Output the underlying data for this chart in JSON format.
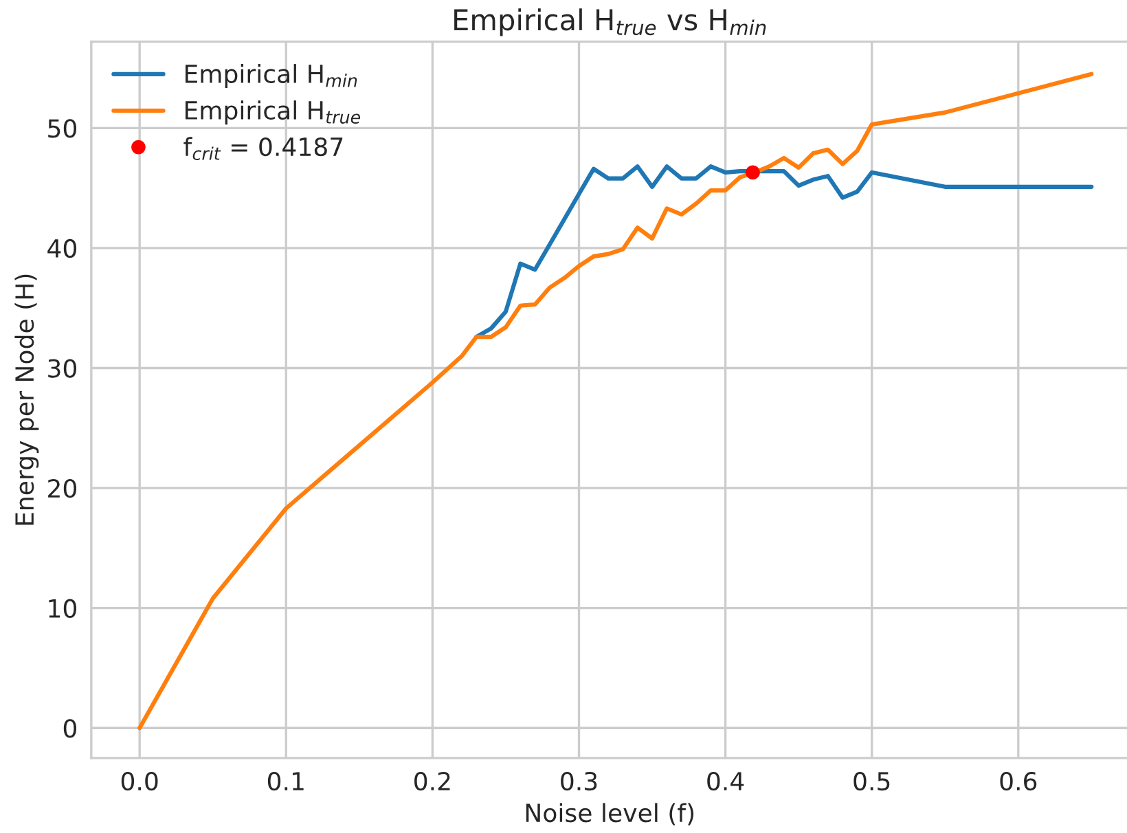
{
  "chart_data": {
    "type": "line",
    "title": "Empirical H$_{true}$ vs H$_{min}$",
    "xlabel": "Noise level (f)",
    "ylabel": "Energy per Node (H)",
    "x": [
      0,
      0.05,
      0.1,
      0.2,
      0.22,
      0.23,
      0.24,
      0.25,
      0.26,
      0.27,
      0.28,
      0.29,
      0.3,
      0.31,
      0.32,
      0.33,
      0.34,
      0.35,
      0.36,
      0.37,
      0.38,
      0.39,
      0.4,
      0.41,
      0.42,
      0.43,
      0.44,
      0.45,
      0.46,
      0.47,
      0.48,
      0.49,
      0.5,
      0.55,
      0.65
    ],
    "series": [
      {
        "name": "Empirical H$_{min}$",
        "color": "#1f77b4",
        "values": [
          null,
          null,
          null,
          null,
          null,
          32.6,
          33.3,
          34.7,
          38.7,
          38.2,
          40.3,
          42.4,
          44.5,
          46.6,
          45.8,
          45.8,
          46.8,
          45.1,
          46.8,
          45.8,
          45.8,
          46.8,
          46.3,
          46.4,
          46.4,
          46.4,
          46.4,
          45.2,
          45.7,
          46.0,
          44.2,
          44.7,
          46.3,
          45.1,
          45.1
        ]
      },
      {
        "name": "Empirical H$_{true}$",
        "color": "#ff7f0e",
        "values": [
          0,
          10.8,
          18.3,
          28.8,
          31.0,
          32.6,
          32.6,
          33.4,
          35.2,
          35.3,
          36.7,
          37.5,
          38.5,
          39.3,
          39.5,
          39.9,
          41.7,
          40.8,
          43.3,
          42.8,
          43.7,
          44.8,
          44.8,
          45.9,
          46.3,
          46.8,
          47.5,
          46.7,
          47.9,
          48.2,
          47.0,
          48.1,
          50.3,
          51.3,
          54.5
        ]
      },
      {
        "name": "f$_{crit}$ = 0.4187",
        "type": "scatter",
        "color": "#ff0000",
        "marker": "circle",
        "x": [
          0.4187
        ],
        "values": [
          46.3
        ]
      }
    ],
    "xlim": [
      -0.033,
      0.675
    ],
    "ylim": [
      -2.5,
      57.2
    ],
    "xticks": [
      {
        "value": 0,
        "label": "0.0"
      },
      0.1,
      0.2,
      0.3,
      0.4,
      0.5,
      0.6
    ],
    "yticks": [
      0,
      10,
      20,
      30,
      40,
      50
    ],
    "grid": true,
    "legend": "top left",
    "line_style": "solid"
  }
}
